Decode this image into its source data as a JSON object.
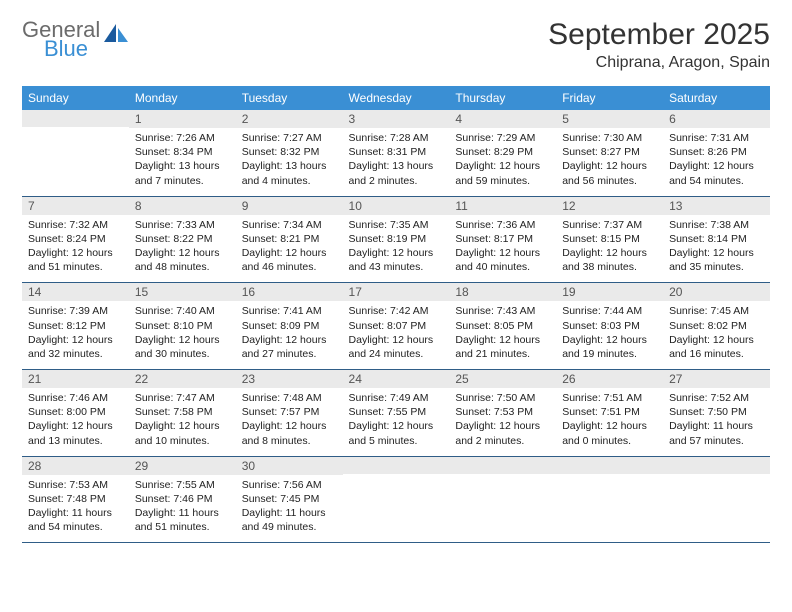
{
  "brand": {
    "general": "General",
    "blue": "Blue"
  },
  "title": "September 2025",
  "location": "Chiprana, Aragon, Spain",
  "colors": {
    "header_bg": "#3a8fd4",
    "header_fg": "#ffffff",
    "daynum_bg": "#eaeaea",
    "daynum_fg": "#555555",
    "border": "#2f5d87",
    "text": "#222222",
    "logo_grey": "#6b6b6b",
    "logo_blue": "#3a8fd4",
    "page_bg": "#ffffff"
  },
  "fonts": {
    "title_size": 30,
    "location_size": 16,
    "dow_size": 12,
    "cell_size": 10.5
  },
  "dow": [
    "Sunday",
    "Monday",
    "Tuesday",
    "Wednesday",
    "Thursday",
    "Friday",
    "Saturday"
  ],
  "weeks": [
    [
      null,
      {
        "n": "1",
        "sr": "7:26 AM",
        "ss": "8:34 PM",
        "dl": "13 hours and 7 minutes."
      },
      {
        "n": "2",
        "sr": "7:27 AM",
        "ss": "8:32 PM",
        "dl": "13 hours and 4 minutes."
      },
      {
        "n": "3",
        "sr": "7:28 AM",
        "ss": "8:31 PM",
        "dl": "13 hours and 2 minutes."
      },
      {
        "n": "4",
        "sr": "7:29 AM",
        "ss": "8:29 PM",
        "dl": "12 hours and 59 minutes."
      },
      {
        "n": "5",
        "sr": "7:30 AM",
        "ss": "8:27 PM",
        "dl": "12 hours and 56 minutes."
      },
      {
        "n": "6",
        "sr": "7:31 AM",
        "ss": "8:26 PM",
        "dl": "12 hours and 54 minutes."
      }
    ],
    [
      {
        "n": "7",
        "sr": "7:32 AM",
        "ss": "8:24 PM",
        "dl": "12 hours and 51 minutes."
      },
      {
        "n": "8",
        "sr": "7:33 AM",
        "ss": "8:22 PM",
        "dl": "12 hours and 48 minutes."
      },
      {
        "n": "9",
        "sr": "7:34 AM",
        "ss": "8:21 PM",
        "dl": "12 hours and 46 minutes."
      },
      {
        "n": "10",
        "sr": "7:35 AM",
        "ss": "8:19 PM",
        "dl": "12 hours and 43 minutes."
      },
      {
        "n": "11",
        "sr": "7:36 AM",
        "ss": "8:17 PM",
        "dl": "12 hours and 40 minutes."
      },
      {
        "n": "12",
        "sr": "7:37 AM",
        "ss": "8:15 PM",
        "dl": "12 hours and 38 minutes."
      },
      {
        "n": "13",
        "sr": "7:38 AM",
        "ss": "8:14 PM",
        "dl": "12 hours and 35 minutes."
      }
    ],
    [
      {
        "n": "14",
        "sr": "7:39 AM",
        "ss": "8:12 PM",
        "dl": "12 hours and 32 minutes."
      },
      {
        "n": "15",
        "sr": "7:40 AM",
        "ss": "8:10 PM",
        "dl": "12 hours and 30 minutes."
      },
      {
        "n": "16",
        "sr": "7:41 AM",
        "ss": "8:09 PM",
        "dl": "12 hours and 27 minutes."
      },
      {
        "n": "17",
        "sr": "7:42 AM",
        "ss": "8:07 PM",
        "dl": "12 hours and 24 minutes."
      },
      {
        "n": "18",
        "sr": "7:43 AM",
        "ss": "8:05 PM",
        "dl": "12 hours and 21 minutes."
      },
      {
        "n": "19",
        "sr": "7:44 AM",
        "ss": "8:03 PM",
        "dl": "12 hours and 19 minutes."
      },
      {
        "n": "20",
        "sr": "7:45 AM",
        "ss": "8:02 PM",
        "dl": "12 hours and 16 minutes."
      }
    ],
    [
      {
        "n": "21",
        "sr": "7:46 AM",
        "ss": "8:00 PM",
        "dl": "12 hours and 13 minutes."
      },
      {
        "n": "22",
        "sr": "7:47 AM",
        "ss": "7:58 PM",
        "dl": "12 hours and 10 minutes."
      },
      {
        "n": "23",
        "sr": "7:48 AM",
        "ss": "7:57 PM",
        "dl": "12 hours and 8 minutes."
      },
      {
        "n": "24",
        "sr": "7:49 AM",
        "ss": "7:55 PM",
        "dl": "12 hours and 5 minutes."
      },
      {
        "n": "25",
        "sr": "7:50 AM",
        "ss": "7:53 PM",
        "dl": "12 hours and 2 minutes."
      },
      {
        "n": "26",
        "sr": "7:51 AM",
        "ss": "7:51 PM",
        "dl": "12 hours and 0 minutes."
      },
      {
        "n": "27",
        "sr": "7:52 AM",
        "ss": "7:50 PM",
        "dl": "11 hours and 57 minutes."
      }
    ],
    [
      {
        "n": "28",
        "sr": "7:53 AM",
        "ss": "7:48 PM",
        "dl": "11 hours and 54 minutes."
      },
      {
        "n": "29",
        "sr": "7:55 AM",
        "ss": "7:46 PM",
        "dl": "11 hours and 51 minutes."
      },
      {
        "n": "30",
        "sr": "7:56 AM",
        "ss": "7:45 PM",
        "dl": "11 hours and 49 minutes."
      },
      null,
      null,
      null,
      null
    ]
  ],
  "labels": {
    "sunrise": "Sunrise:",
    "sunset": "Sunset:",
    "daylight": "Daylight:"
  }
}
